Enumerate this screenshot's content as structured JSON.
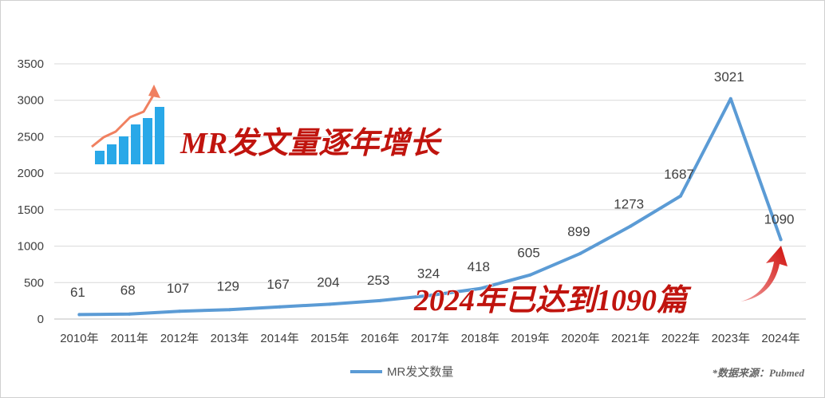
{
  "chart_data": {
    "type": "line",
    "categories": [
      "2010年",
      "2011年",
      "2012年",
      "2013年",
      "2014年",
      "2015年",
      "2016年",
      "2017年",
      "2018年",
      "2019年",
      "2020年",
      "2021年",
      "2022年",
      "2023年",
      "2024年"
    ],
    "series": [
      {
        "name": "MR发文数量",
        "values": [
          61,
          68,
          107,
          129,
          167,
          204,
          253,
          324,
          418,
          605,
          899,
          1273,
          1687,
          3021,
          1090
        ]
      }
    ],
    "data_labels": [
      "61",
      "68",
      "107",
      "129",
      "167",
      "204",
      "253",
      "324",
      "418",
      "605",
      "899",
      "1273",
      "1687",
      "3021",
      "1090"
    ],
    "y_ticks": [
      "0",
      "500",
      "1000",
      "1500",
      "2000",
      "2500",
      "3000",
      "3500"
    ],
    "ylim": [
      0,
      3500
    ],
    "grid": true,
    "legend_position": "bottom-center",
    "series_color": "#5b9bd5"
  },
  "annotations": {
    "headline": "MR发文量逐年增长",
    "callout_2024": "2024年已达到1090篇",
    "source": "*数据来源：Pubmed"
  },
  "colors": {
    "annotation_red": "#c0140e",
    "icon_bar": "#29a8e8",
    "icon_arrow": "#f08060",
    "gridline": "#d9d9d9"
  }
}
